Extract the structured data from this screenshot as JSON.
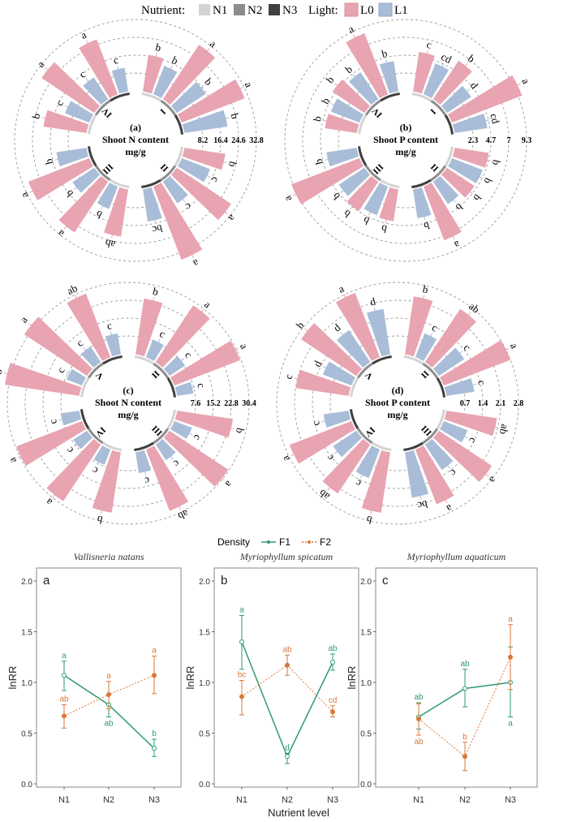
{
  "legend": {
    "nutrient_label": "Nutrient:",
    "nutrient_levels": [
      {
        "name": "N1",
        "color": "#d3d3d3"
      },
      {
        "name": "N2",
        "color": "#8c8c8c"
      },
      {
        "name": "N3",
        "color": "#3f3f3f"
      }
    ],
    "light_label": "Light:",
    "light_levels": [
      {
        "name": "L0",
        "color": "#e8a4b1"
      },
      {
        "name": "L1",
        "color": "#a9bdd8"
      }
    ]
  },
  "density_legend": {
    "label": "Density",
    "levels": [
      {
        "name": "F1",
        "color": "#2e9a72"
      },
      {
        "name": "F2",
        "color": "#d8773a"
      }
    ]
  },
  "chart_data": [
    {
      "type": "bar",
      "subtype": "radial",
      "panel": "(a)",
      "title": "Shoot N content",
      "unit": "mg/g",
      "ticks": [
        "8.2",
        "16.4",
        "24.6",
        "32.8"
      ],
      "max": 32.8,
      "bar_order": [
        "N1-L0",
        "N1-L1",
        "N2-L0",
        "N2-L1",
        "N3-L0",
        "N3-L1"
      ],
      "groups": [
        {
          "name": "I",
          "values": [
            17,
            14,
            30,
            16,
            31,
            20
          ],
          "letters": [
            "b",
            "b",
            "a",
            "b",
            "a",
            "b"
          ]
        },
        {
          "name": "II",
          "values": [
            19,
            14,
            30,
            12,
            36,
            15
          ],
          "letters": [
            "b",
            "c",
            "a",
            "c",
            "a",
            "bc"
          ]
        },
        {
          "name": "III",
          "values": [
            22,
            11,
            28,
            12,
            30,
            14
          ],
          "letters": [
            "ab",
            "b",
            "a",
            "b",
            "a",
            "b"
          ]
        },
        {
          "name": "IV",
          "values": [
            20,
            12,
            29,
            12,
            27,
            11
          ],
          "letters": [
            "b",
            "c",
            "a",
            "c",
            "a",
            "c"
          ]
        }
      ]
    },
    {
      "type": "bar",
      "subtype": "radial",
      "panel": "(b)",
      "title": "Shoot P content",
      "unit": "mg/g",
      "ticks": [
        "2.3",
        "4.7",
        "7",
        "9.3"
      ],
      "max": 9.3,
      "bar_order": [
        "N1-L0",
        "N1-L1",
        "N2-L0",
        "N2-L1",
        "N3-L0",
        "N3-L1"
      ],
      "groups": [
        {
          "name": "I",
          "values": [
            5.2,
            4.3,
            6.0,
            3.8,
            9.8,
            4.3
          ],
          "letters": [
            "c",
            "cd",
            "b",
            "d",
            "a",
            "cd"
          ]
        },
        {
          "name": "II",
          "values": [
            4.5,
            4.3,
            4.3,
            3.5,
            7.5,
            3.8
          ],
          "letters": [
            "b",
            "b",
            "b",
            "b",
            "a",
            "b"
          ]
        },
        {
          "name": "III",
          "values": [
            4.2,
            4.0,
            4.6,
            4.0,
            9.5,
            4.0
          ],
          "letters": [
            "b",
            "b",
            "b",
            "b",
            "a",
            "b"
          ]
        },
        {
          "name": "IV",
          "values": [
            4.2,
            4.0,
            5.0,
            4.2,
            8.5,
            4.0
          ],
          "letters": [
            "b",
            "b",
            "b",
            "b",
            "a",
            "b"
          ]
        }
      ]
    },
    {
      "type": "bar",
      "subtype": "radial",
      "panel": "(c)",
      "title": "Shoot N content",
      "unit": "mg/g",
      "ticks": [
        "7.6",
        "15.2",
        "22.8",
        "30.4"
      ],
      "max": 30.4,
      "bar_order": [
        "N1-L0",
        "N1-L1",
        "N2-L0",
        "N2-L1",
        "N3-L0",
        "N3-L1"
      ],
      "groups": [
        {
          "name": "II",
          "values": [
            24,
            8,
            29,
            8,
            30,
            7
          ],
          "letters": [
            "b",
            "c",
            "a",
            "c",
            "a",
            "c"
          ]
        },
        {
          "name": "III",
          "values": [
            24,
            8,
            30,
            8,
            28,
            9
          ],
          "letters": [
            "b",
            "c",
            "a",
            "c",
            "ab",
            "c"
          ]
        },
        {
          "name": "IV",
          "values": [
            26,
            7,
            29,
            7,
            30,
            8
          ],
          "letters": [
            "b",
            "c",
            "a",
            "c",
            "a",
            "c"
          ]
        },
        {
          "name": "V",
          "values": [
            32,
            7,
            32,
            8,
            29,
            9
          ],
          "letters": [
            "b",
            "c",
            "a",
            "c",
            "ab",
            "c"
          ]
        }
      ]
    },
    {
      "type": "bar",
      "subtype": "radial",
      "panel": "(d)",
      "title": "Shoot P content",
      "unit": "mg/g",
      "ticks": [
        "0.7",
        "1.4",
        "2.1",
        "2.8"
      ],
      "max": 2.8,
      "bar_order": [
        "N1-L0",
        "N1-L1",
        "N2-L0",
        "N2-L1",
        "N3-L0",
        "N3-L1"
      ],
      "groups": [
        {
          "name": "II",
          "values": [
            2.3,
            1.0,
            2.5,
            1.2,
            2.8,
            1.1
          ],
          "letters": [
            "b",
            "c",
            "ab",
            "c",
            "a",
            "c"
          ]
        },
        {
          "name": "III",
          "values": [
            2.0,
            1.0,
            2.5,
            1.2,
            2.3,
            1.8
          ],
          "letters": [
            "ab",
            "c",
            "a",
            "c",
            "a",
            "bc"
          ]
        },
        {
          "name": "IV",
          "values": [
            2.4,
            1.2,
            2.3,
            1.1,
            2.6,
            1.0
          ],
          "letters": [
            "b",
            "c",
            "ab",
            "c",
            "a",
            "c"
          ]
        },
        {
          "name": "V",
          "values": [
            2.1,
            1.2,
            2.6,
            1.5,
            2.7,
            1.8
          ],
          "letters": [
            "c",
            "d",
            "b",
            "d",
            "a",
            "d"
          ]
        }
      ]
    },
    {
      "type": "line",
      "panel": "a",
      "title": "Vallisneria natans",
      "ylabel": "lnRR",
      "categories": [
        "N1",
        "N2",
        "N3"
      ],
      "ylim": [
        0,
        2
      ],
      "yticks": [
        "0.0",
        "0.5",
        "1.0",
        "1.5",
        "2.0"
      ],
      "series": [
        {
          "name": "F1",
          "values": [
            1.07,
            0.78,
            0.35
          ],
          "err_low": [
            0.92,
            0.66,
            0.27
          ],
          "err_high": [
            1.21,
            0.88,
            0.44
          ],
          "letters": [
            "a",
            "ab",
            "b"
          ],
          "letter_pos": [
            "above",
            "below",
            "above"
          ]
        },
        {
          "name": "F2",
          "values": [
            0.67,
            0.88,
            1.07
          ],
          "err_low": [
            0.55,
            0.74,
            0.89
          ],
          "err_high": [
            0.78,
            1.01,
            1.26
          ],
          "letters": [
            "ab",
            "a",
            "a"
          ],
          "letter_pos": [
            "above",
            "above",
            "above"
          ]
        }
      ]
    },
    {
      "type": "line",
      "panel": "b",
      "title": "Myriophyllum spicatum",
      "ylabel": "lnRR",
      "xlabel": "Nutrient level",
      "categories": [
        "N1",
        "N2",
        "N3"
      ],
      "ylim": [
        0,
        2
      ],
      "yticks": [
        "0.0",
        "0.5",
        "1.0",
        "1.5",
        "2.0"
      ],
      "series": [
        {
          "name": "F1",
          "values": [
            1.4,
            0.27,
            1.2
          ],
          "err_low": [
            1.13,
            0.2,
            1.12
          ],
          "err_high": [
            1.66,
            0.3,
            1.28
          ],
          "letters": [
            "a",
            "d",
            "ab"
          ],
          "letter_pos": [
            "above",
            "above",
            "above"
          ]
        },
        {
          "name": "F2",
          "values": [
            0.86,
            1.17,
            0.71
          ],
          "err_low": [
            0.68,
            1.07,
            0.66
          ],
          "err_high": [
            1.02,
            1.27,
            0.77
          ],
          "letters": [
            "bc",
            "ab",
            "cd"
          ],
          "letter_pos": [
            "above",
            "above",
            "above"
          ]
        }
      ]
    },
    {
      "type": "line",
      "panel": "c",
      "title": "Myriophyllum aquaticum",
      "ylabel": "lnRR",
      "categories": [
        "N1",
        "N2",
        "N3"
      ],
      "ylim": [
        0,
        2
      ],
      "yticks": [
        "0.0",
        "0.5",
        "1.0",
        "1.5",
        "2.0"
      ],
      "series": [
        {
          "name": "F1",
          "values": [
            0.66,
            0.94,
            1.0
          ],
          "err_low": [
            0.54,
            0.76,
            0.66
          ],
          "err_high": [
            0.8,
            1.13,
            1.35
          ],
          "letters": [
            "ab",
            "ab",
            "a"
          ],
          "letter_pos": [
            "above",
            "above",
            "below"
          ]
        },
        {
          "name": "F2",
          "values": [
            0.64,
            0.27,
            1.25
          ],
          "err_low": [
            0.48,
            0.13,
            0.93
          ],
          "err_high": [
            0.79,
            0.41,
            1.57
          ],
          "letters": [
            "ab",
            "b",
            "a"
          ],
          "letter_pos": [
            "below",
            "above",
            "above"
          ]
        }
      ]
    }
  ]
}
